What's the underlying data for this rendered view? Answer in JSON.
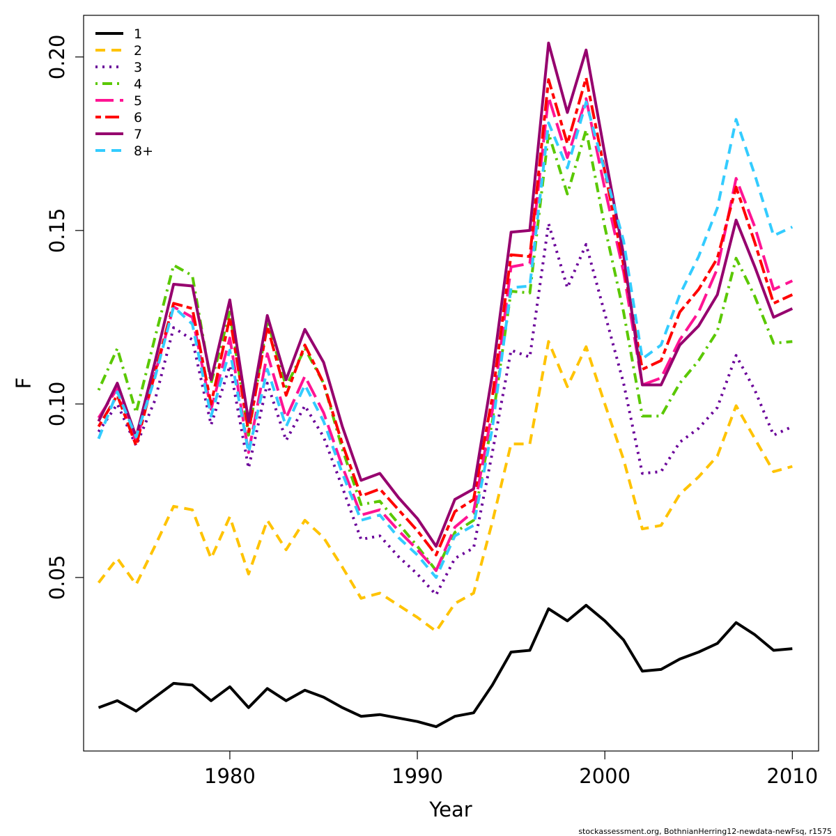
{
  "chart_data": {
    "type": "line",
    "xlabel": "Year",
    "ylabel": "F",
    "xlim": [
      1972.2,
      2011.4
    ],
    "ylim": [
      0.0,
      0.212
    ],
    "x_ticks": [
      1980,
      1990,
      2000,
      2010
    ],
    "y_ticks": [
      0.05,
      0.1,
      0.15,
      0.2
    ],
    "y_tick_labels": [
      "0.05",
      "0.10",
      "0.15",
      "0.20"
    ],
    "legend_position": "top-left",
    "footer": "stockassessment.org, BothnianHerring12-newdata-newFsq, r1575",
    "x": [
      1973,
      1974,
      1975,
      1976,
      1977,
      1978,
      1979,
      1980,
      1981,
      1982,
      1983,
      1984,
      1985,
      1986,
      1987,
      1988,
      1989,
      1990,
      1991,
      1992,
      1993,
      1994,
      1995,
      1996,
      1997,
      1998,
      1999,
      2000,
      2001,
      2002,
      2003,
      2004,
      2005,
      2006,
      2007,
      2008,
      2009,
      2010
    ],
    "series": [
      {
        "name": "1",
        "color": "#000000",
        "dash": "solid",
        "values": [
          0.0125,
          0.0145,
          0.0115,
          0.0155,
          0.0195,
          0.019,
          0.0145,
          0.0185,
          0.0125,
          0.018,
          0.0145,
          0.0175,
          0.0155,
          0.0125,
          0.01,
          0.0105,
          0.0095,
          0.0085,
          0.007,
          0.01,
          0.011,
          0.019,
          0.0285,
          0.029,
          0.041,
          0.0375,
          0.042,
          0.0375,
          0.032,
          0.023,
          0.0235,
          0.0265,
          0.0285,
          0.031,
          0.037,
          0.0335,
          0.029,
          0.0295
        ]
      },
      {
        "name": "2",
        "color": "#ffc300",
        "dash": "dashed",
        "values": [
          0.0485,
          0.0555,
          0.048,
          0.059,
          0.0705,
          0.0695,
          0.0555,
          0.0675,
          0.051,
          0.0665,
          0.058,
          0.0665,
          0.0615,
          0.053,
          0.044,
          0.0455,
          0.042,
          0.0385,
          0.0345,
          0.0425,
          0.0455,
          0.066,
          0.0885,
          0.0885,
          0.118,
          0.105,
          0.1165,
          0.1,
          0.084,
          0.064,
          0.065,
          0.074,
          0.079,
          0.085,
          0.0995,
          0.09,
          0.0805,
          0.082
        ]
      },
      {
        "name": "3",
        "color": "#6a0099",
        "dash": "dotted",
        "values": [
          0.092,
          0.1,
          0.088,
          0.101,
          0.122,
          0.1185,
          0.094,
          0.111,
          0.0815,
          0.106,
          0.0895,
          0.0995,
          0.0905,
          0.076,
          0.061,
          0.062,
          0.056,
          0.051,
          0.045,
          0.0555,
          0.0585,
          0.086,
          0.1155,
          0.1135,
          0.152,
          0.1335,
          0.146,
          0.126,
          0.106,
          0.08,
          0.0805,
          0.089,
          0.093,
          0.099,
          0.114,
          0.104,
          0.091,
          0.0935
        ]
      },
      {
        "name": "4",
        "color": "#5ac800",
        "dash": "dashdot",
        "values": [
          0.104,
          0.116,
          0.0975,
          0.119,
          0.14,
          0.137,
          0.106,
          0.1265,
          0.091,
          0.124,
          0.105,
          0.116,
          0.106,
          0.087,
          0.071,
          0.072,
          0.0655,
          0.059,
          0.052,
          0.063,
          0.0665,
          0.095,
          0.1325,
          0.132,
          0.178,
          0.1605,
          0.179,
          0.151,
          0.1265,
          0.0965,
          0.0965,
          0.106,
          0.1125,
          0.121,
          0.142,
          0.131,
          0.1175,
          0.118
        ]
      },
      {
        "name": "5",
        "color": "#ff1493",
        "dash": "longdash",
        "values": [
          0.096,
          0.1045,
          0.089,
          0.1085,
          0.128,
          0.125,
          0.0985,
          0.119,
          0.086,
          0.1145,
          0.096,
          0.108,
          0.0975,
          0.082,
          0.068,
          0.0695,
          0.0635,
          0.058,
          0.052,
          0.0645,
          0.069,
          0.098,
          0.1395,
          0.1405,
          0.1885,
          0.171,
          0.188,
          0.162,
          0.138,
          0.1055,
          0.1075,
          0.1185,
          0.1265,
          0.139,
          0.165,
          0.151,
          0.133,
          0.1355
        ]
      },
      {
        "name": "6",
        "color": "#ff0000",
        "dash": "twodash",
        "values": [
          0.0935,
          0.1025,
          0.088,
          0.109,
          0.129,
          0.1275,
          0.1,
          0.125,
          0.092,
          0.1225,
          0.1025,
          0.117,
          0.106,
          0.0885,
          0.0735,
          0.0755,
          0.0695,
          0.0635,
          0.0565,
          0.069,
          0.0725,
          0.102,
          0.143,
          0.1425,
          0.1935,
          0.175,
          0.194,
          0.167,
          0.14,
          0.11,
          0.1125,
          0.1265,
          0.133,
          0.142,
          0.1625,
          0.1465,
          0.129,
          0.1315
        ]
      },
      {
        "name": "7",
        "color": "#96006e",
        "dash": "solid",
        "values": [
          0.095,
          0.106,
          0.0905,
          0.112,
          0.1345,
          0.134,
          0.107,
          0.13,
          0.095,
          0.1255,
          0.107,
          0.1215,
          0.112,
          0.0935,
          0.078,
          0.08,
          0.073,
          0.067,
          0.059,
          0.0725,
          0.0755,
          0.1085,
          0.1495,
          0.15,
          0.204,
          0.184,
          0.202,
          0.172,
          0.143,
          0.1055,
          0.1055,
          0.117,
          0.1225,
          0.1315,
          0.153,
          0.1395,
          0.125,
          0.1275
        ]
      },
      {
        "name": "8+",
        "color": "#33ccff",
        "dash": "dashed",
        "values": [
          0.09,
          0.1035,
          0.0905,
          0.1075,
          0.128,
          0.123,
          0.0965,
          0.1155,
          0.086,
          0.11,
          0.0935,
          0.1055,
          0.095,
          0.08,
          0.0665,
          0.068,
          0.0615,
          0.0565,
          0.05,
          0.062,
          0.065,
          0.093,
          0.1335,
          0.134,
          0.181,
          0.168,
          0.187,
          0.167,
          0.147,
          0.113,
          0.117,
          0.1315,
          0.1425,
          0.1565,
          0.182,
          0.166,
          0.1485,
          0.151
        ]
      }
    ]
  }
}
